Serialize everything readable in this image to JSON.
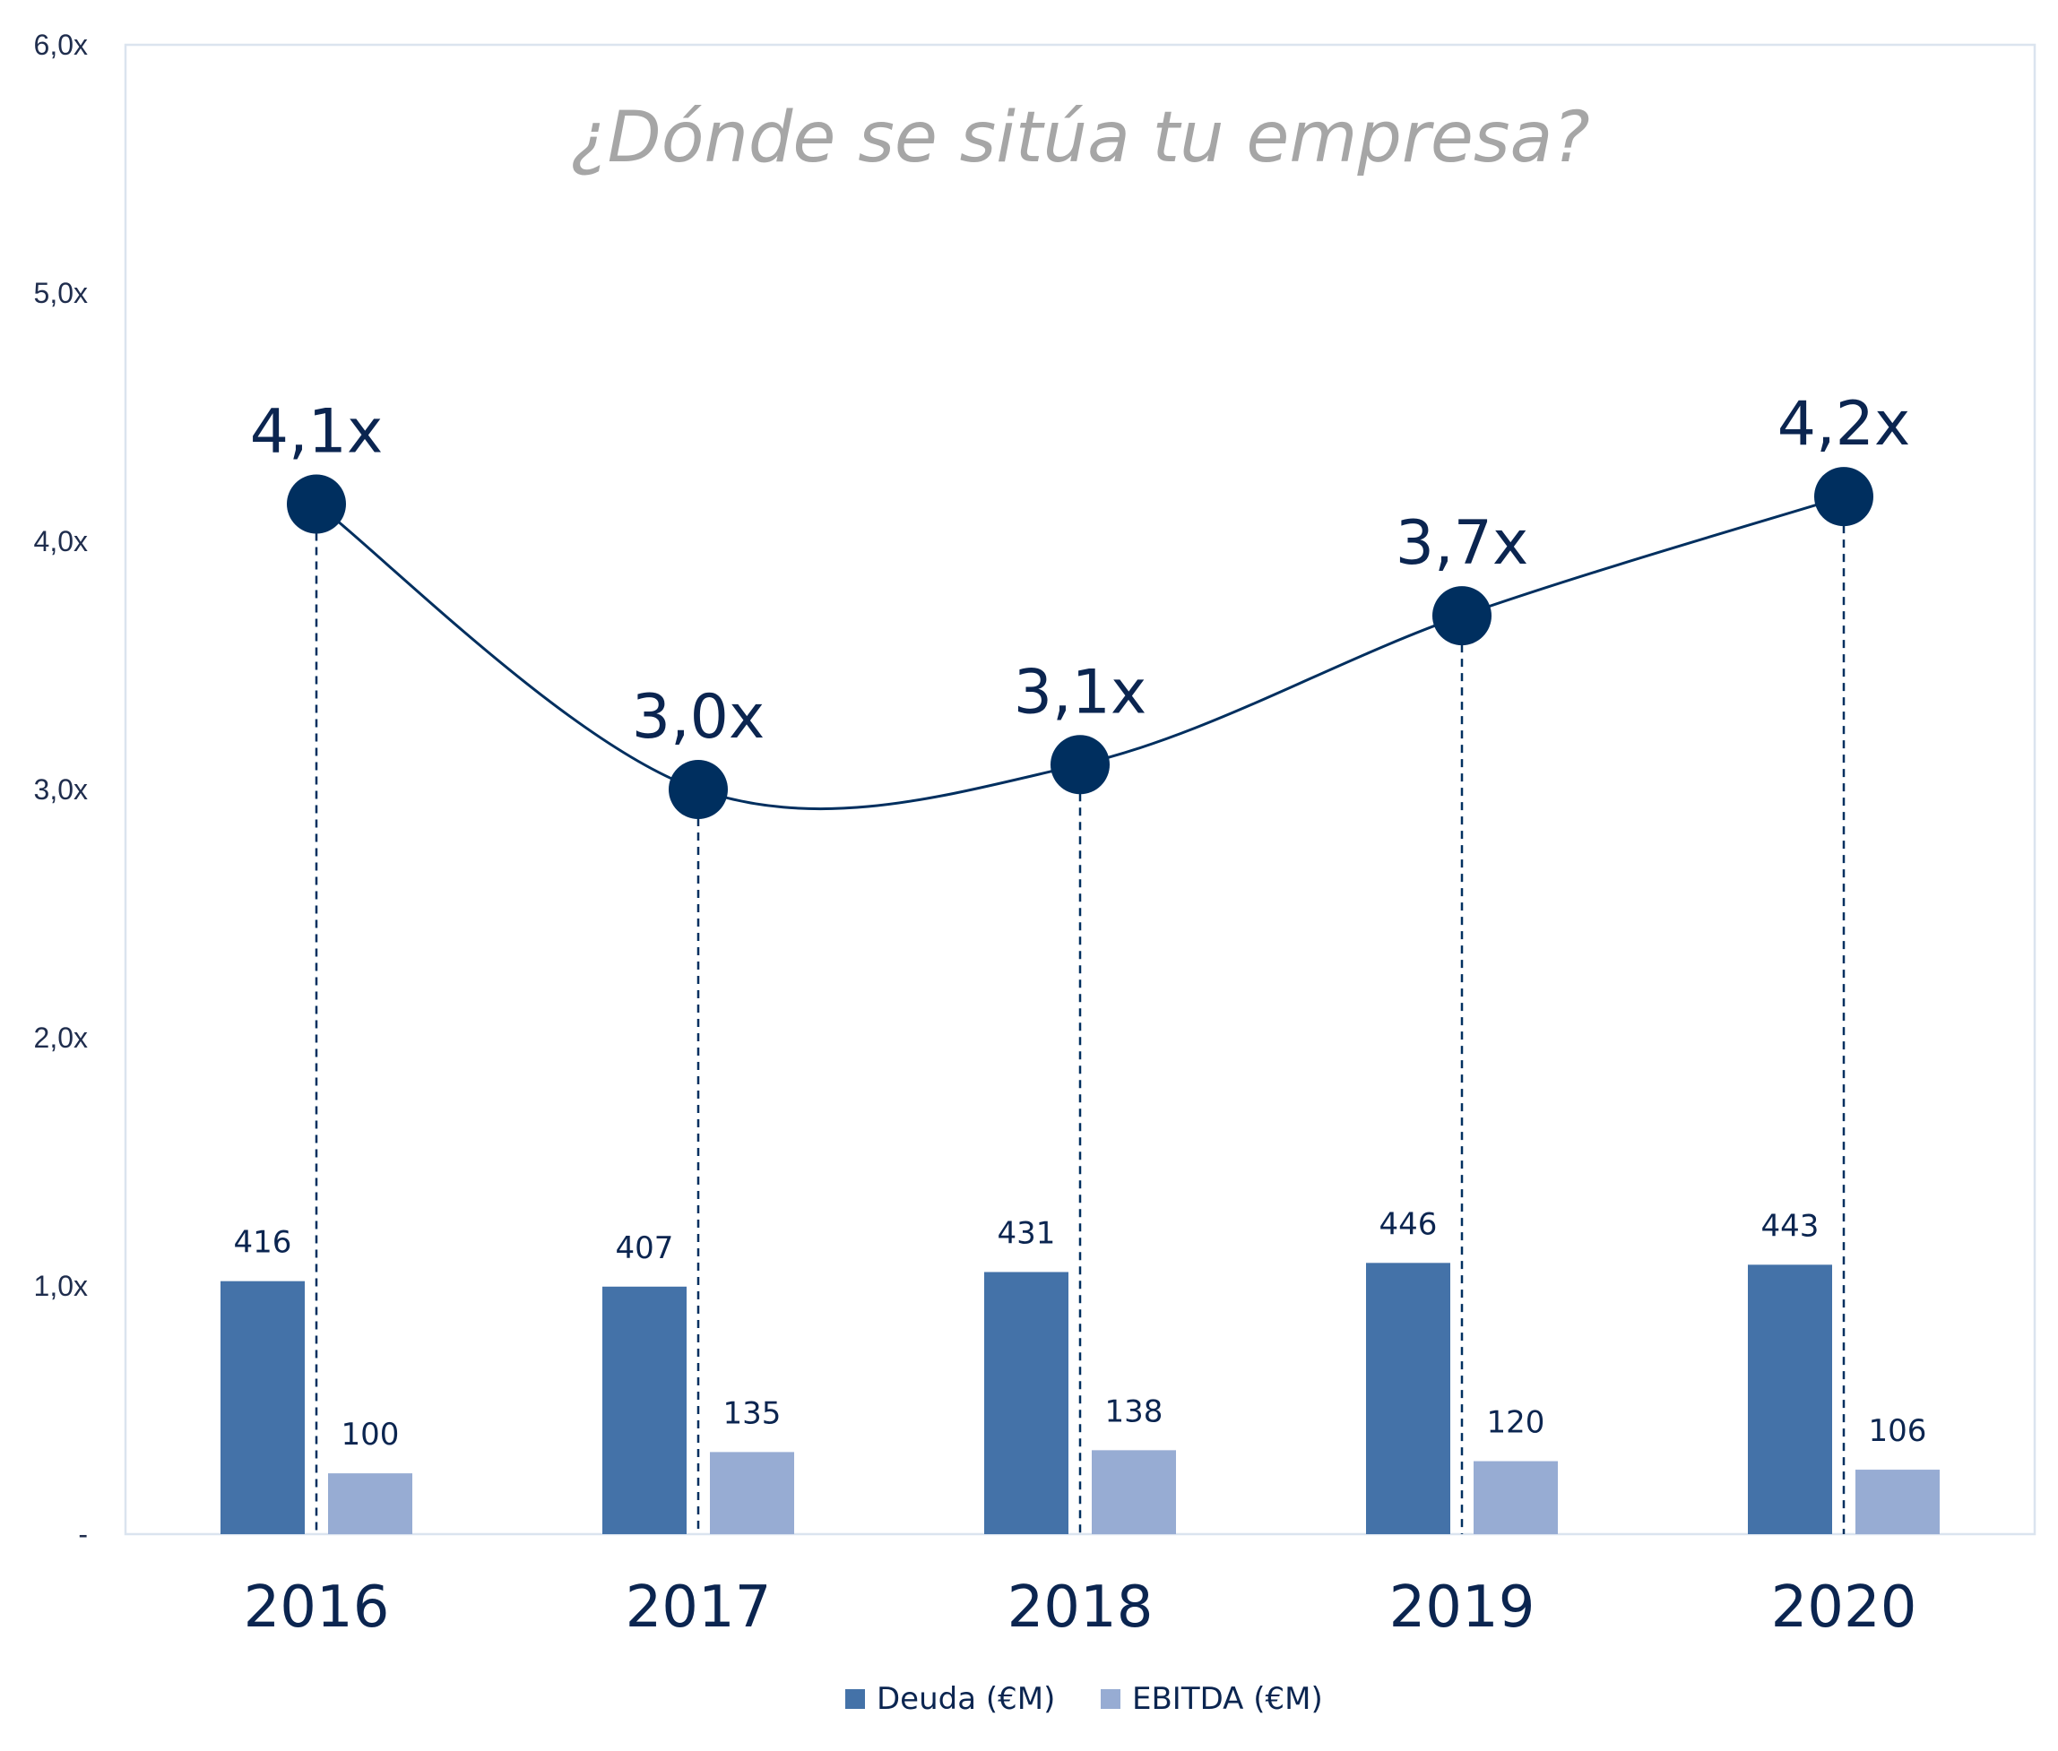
{
  "colors": {
    "deuda": "#4472a8",
    "ebitda": "#97acd3",
    "line": "#002f5f",
    "frame": "#dbe4ef",
    "title": "#a6a6a6",
    "text": "#0b2550"
  },
  "chart_data": {
    "type": "bar",
    "title": "¿Dónde se sitúa tu empresa?",
    "xlabel": "",
    "ylabel": "",
    "ylim": [
      0,
      6.0
    ],
    "y_ticks": [
      "-",
      "1,0x",
      "2,0x",
      "3,0x",
      "4,0x",
      "5,0x",
      "6,0x"
    ],
    "y_tick_values": [
      0,
      1,
      2,
      3,
      4,
      5,
      6
    ],
    "categories": [
      "2016",
      "2017",
      "2018",
      "2019",
      "2020"
    ],
    "series": [
      {
        "name": "Deuda (€M)",
        "type": "bar",
        "values": [
          416,
          407,
          431,
          446,
          443
        ],
        "labels": [
          "416",
          "407",
          "431",
          "446",
          "443"
        ]
      },
      {
        "name": "EBITDA (€M)",
        "type": "bar",
        "values": [
          100,
          135,
          138,
          120,
          106
        ],
        "labels": [
          "100",
          "135",
          "138",
          "120",
          "106"
        ]
      },
      {
        "name": "",
        "type": "line",
        "values": [
          4.15,
          3.0,
          3.1,
          3.7,
          4.18
        ],
        "labels": [
          "4,1x",
          "3,0x",
          "3,1x",
          "3,7x",
          "4,2x"
        ]
      }
    ],
    "bar_value_scale": 0.00245,
    "grid": false,
    "legend_position": "bottom"
  }
}
